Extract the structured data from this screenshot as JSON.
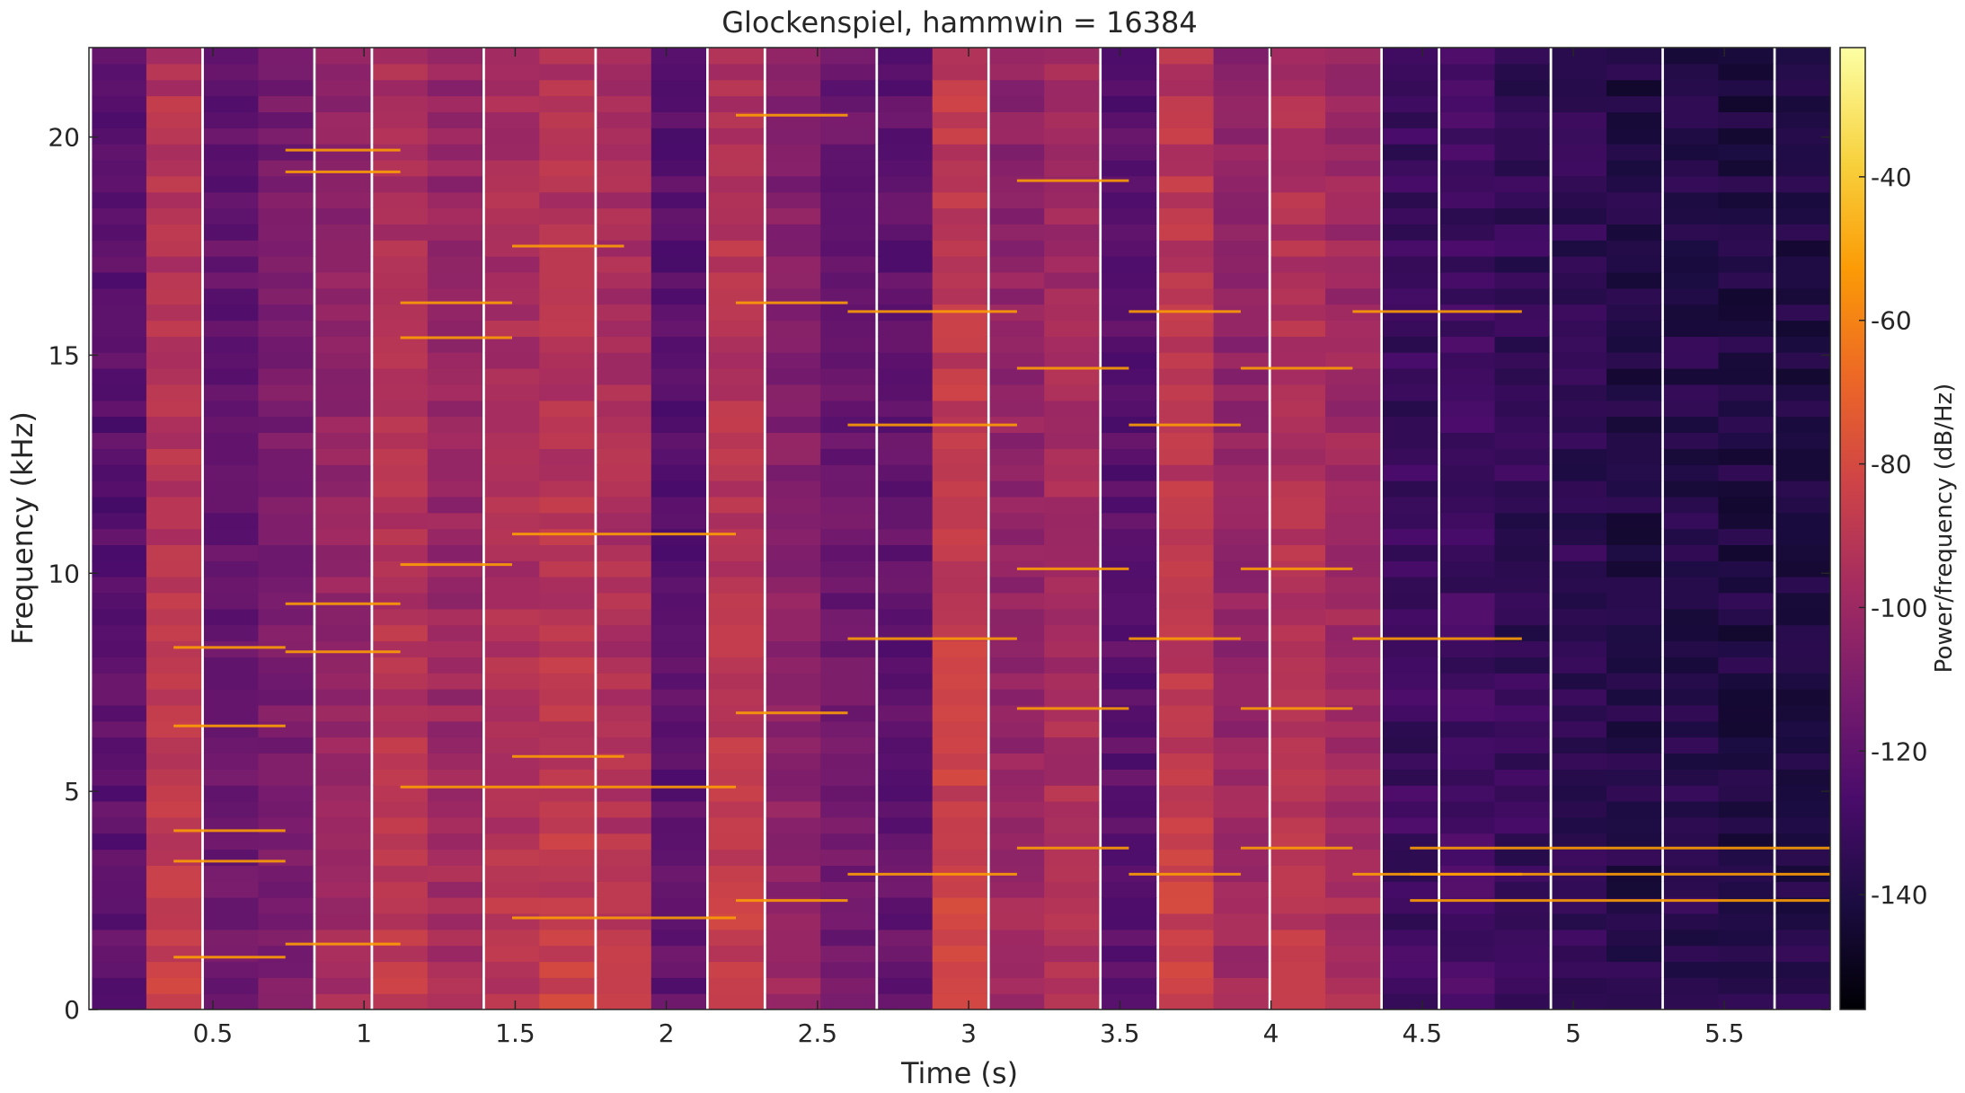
{
  "chart_data": {
    "type": "heatmap",
    "title": "Glockenspiel, hammwin = 16384",
    "xlabel": "Time (s)",
    "ylabel": "Frequency (kHz)",
    "xlim": [
      0.09,
      5.85
    ],
    "ylim": [
      0,
      22.05
    ],
    "xticks": [
      0.5,
      1,
      1.5,
      2,
      2.5,
      3,
      3.5,
      4,
      4.5,
      5,
      5.5
    ],
    "xtick_labels": [
      "0.5",
      "1",
      "1.5",
      "2",
      "2.5",
      "3",
      "3.5",
      "4",
      "4.5",
      "5",
      "5.5"
    ],
    "yticks": [
      0,
      5,
      10,
      15,
      20
    ],
    "ytick_labels": [
      "0",
      "5",
      "10",
      "15",
      "20"
    ],
    "colormap": "inferno",
    "colorbar": {
      "label": "Power/frequency (dB/Hz)",
      "limits": [
        -156,
        -22
      ],
      "ticks": [
        -40,
        -60,
        -80,
        -100,
        -120,
        -140
      ],
      "tick_labels": [
        "-40",
        "-60",
        "-80",
        "-100",
        "-120",
        "-140"
      ]
    },
    "time_frames": [
      0.19,
      0.37,
      0.56,
      0.74,
      0.93,
      1.12,
      1.3,
      1.49,
      1.67,
      1.86,
      2.04,
      2.23,
      2.42,
      2.6,
      2.79,
      2.97,
      3.16,
      3.34,
      3.53,
      3.72,
      3.9,
      4.09,
      4.27,
      4.46,
      4.65,
      4.83,
      5.02,
      5.2,
      5.39,
      5.57,
      5.76
    ],
    "frame_base_db": [
      -122,
      -92,
      -118,
      -112,
      -104,
      -94,
      -102,
      -96,
      -92,
      -96,
      -122,
      -92,
      -108,
      -116,
      -120,
      -88,
      -104,
      -98,
      -122,
      -90,
      -104,
      -94,
      -100,
      -132,
      -130,
      -134,
      -136,
      -140,
      -138,
      -140,
      -140
    ],
    "strike_times": [
      0.37,
      0.74,
      1.12,
      1.49,
      1.86,
      2.23,
      2.6,
      2.97,
      3.16,
      3.53,
      3.9,
      4.09,
      4.46
    ],
    "harmonic_lines_khz": [
      {
        "t0": 0.37,
        "t1": 0.74,
        "freqs": [
          1.2,
          3.4,
          4.1,
          6.5,
          8.3
        ]
      },
      {
        "t0": 0.74,
        "t1": 1.12,
        "freqs": [
          1.5,
          8.2,
          9.3,
          19.2,
          19.7
        ]
      },
      {
        "t0": 1.12,
        "t1": 1.49,
        "freqs": [
          5.1,
          10.2,
          15.4,
          16.2
        ]
      },
      {
        "t0": 1.49,
        "t1": 1.86,
        "freqs": [
          2.1,
          5.1,
          5.8,
          10.9,
          17.5
        ]
      },
      {
        "t0": 1.86,
        "t1": 2.23,
        "freqs": [
          2.1,
          5.1,
          10.9
        ]
      },
      {
        "t0": 2.23,
        "t1": 2.6,
        "freqs": [
          2.5,
          6.8,
          20.5,
          16.2
        ]
      },
      {
        "t0": 2.6,
        "t1": 3.16,
        "freqs": [
          3.1,
          8.5,
          13.4,
          16.0
        ]
      },
      {
        "t0": 3.16,
        "t1": 3.53,
        "freqs": [
          3.7,
          6.9,
          10.1,
          14.7,
          19.0
        ]
      },
      {
        "t0": 3.53,
        "t1": 3.9,
        "freqs": [
          3.1,
          8.5,
          16.0,
          13.4
        ]
      },
      {
        "t0": 3.9,
        "t1": 4.27,
        "freqs": [
          3.7,
          6.9,
          10.1,
          14.7
        ]
      },
      {
        "t0": 4.27,
        "t1": 4.83,
        "freqs": [
          3.1,
          8.5,
          16.0
        ]
      },
      {
        "t0": 4.46,
        "t1": 5.85,
        "freqs": [
          2.5,
          3.1,
          3.7
        ]
      }
    ]
  },
  "colors": {
    "axis": "#262626",
    "background": "#ffffff",
    "colormap_stops": [
      "#000004",
      "#1b0c41",
      "#4a0c6b",
      "#781c6d",
      "#a52c60",
      "#cf4446",
      "#ed6925",
      "#fb9b06",
      "#f7d13d",
      "#fcffa4"
    ]
  }
}
